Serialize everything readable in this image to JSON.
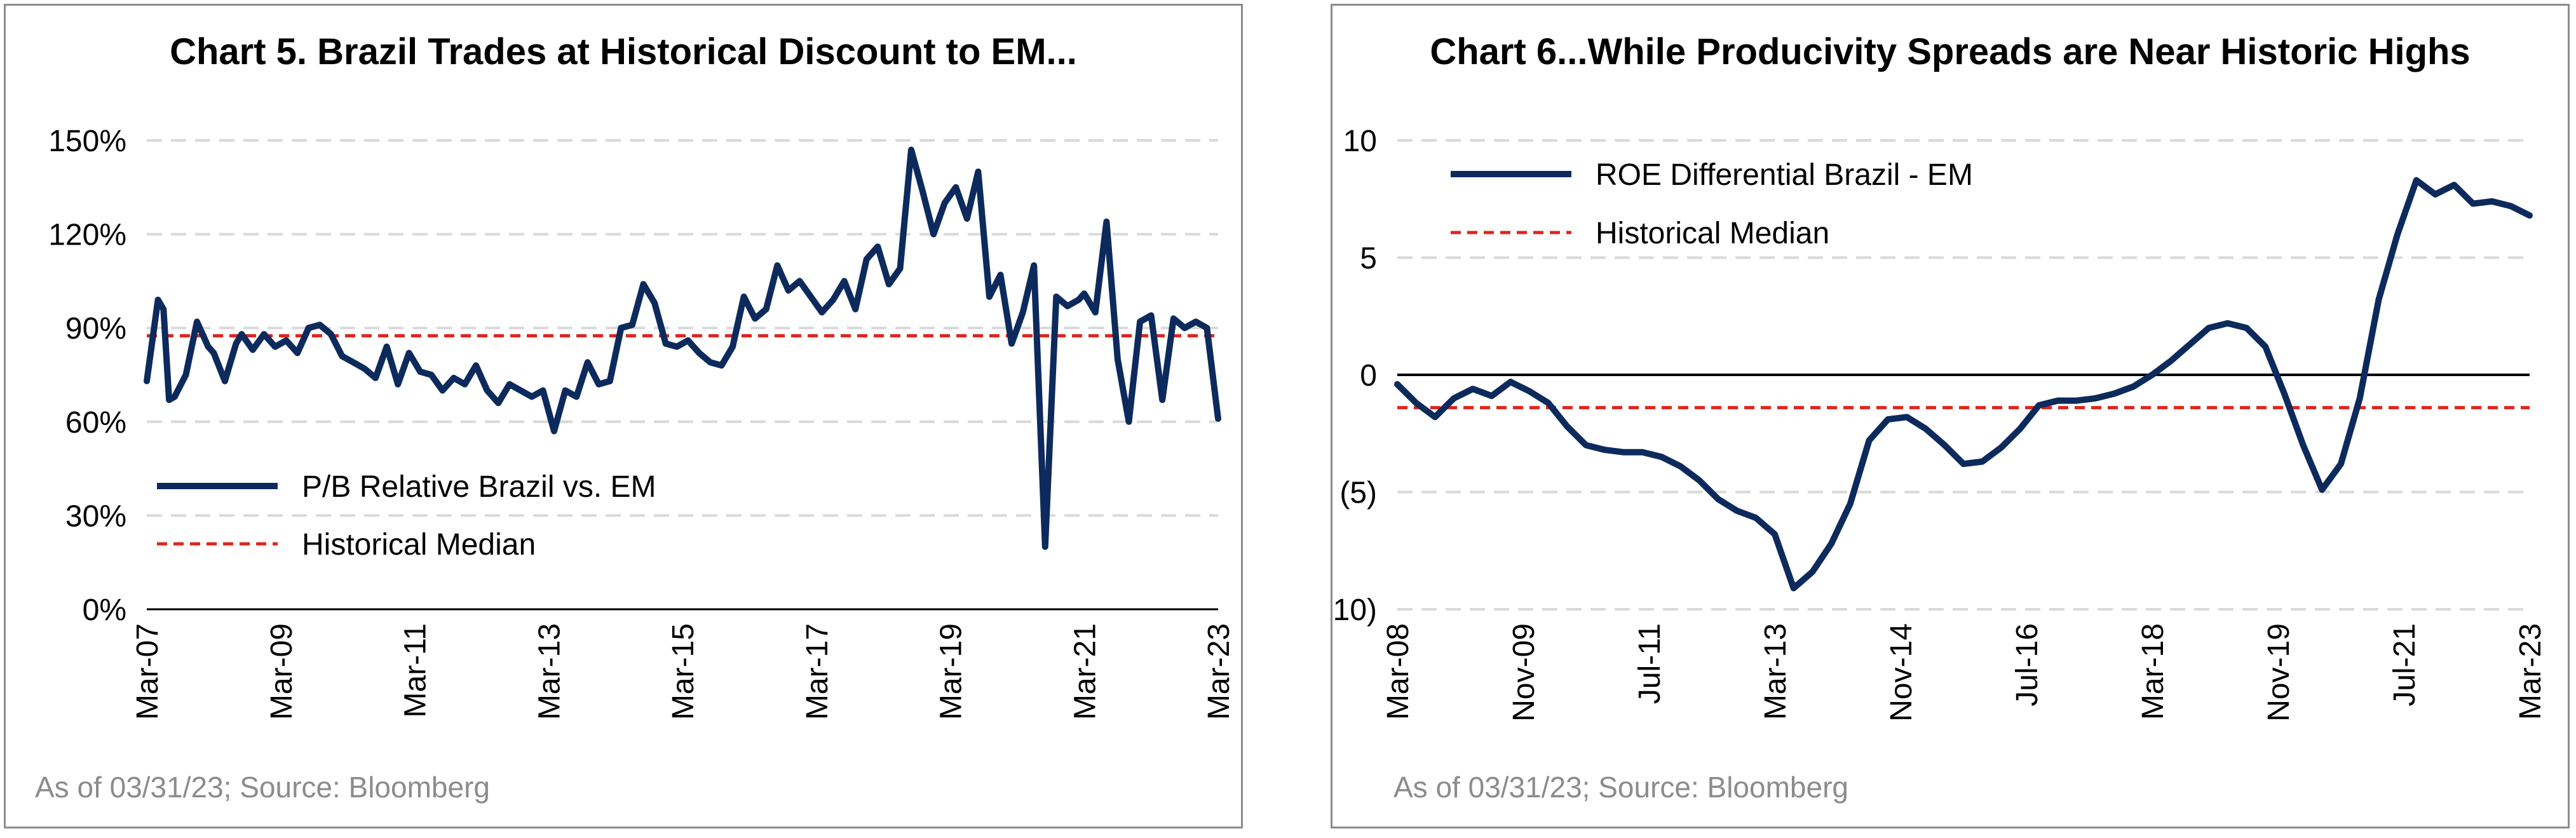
{
  "colors": {
    "series": "#0c2a5c",
    "median": "#e2231a",
    "grid": "#d9d9d9",
    "zero": "#000000",
    "source": "#8c8c8c"
  },
  "chart_data": [
    {
      "type": "line",
      "title": "Chart 5. Brazil Trades at Historical Discount to EM...",
      "source": "As of 03/31/23; Source: Bloomberg",
      "xlabel": "",
      "ylabel": "",
      "x_ticks": [
        "Mar-07",
        "Mar-09",
        "Mar-11",
        "Mar-13",
        "Mar-15",
        "Mar-17",
        "Mar-19",
        "Mar-21",
        "Mar-23"
      ],
      "y_ticks": [
        "0%",
        "30%",
        "60%",
        "90%",
        "120%",
        "150%"
      ],
      "ylim": [
        0,
        150
      ],
      "xlim": [
        "2007-03",
        "2023-03"
      ],
      "grid": true,
      "legend": "left-center",
      "series": [
        {
          "name": "P/B Relative Brazil vs. EM",
          "x": [
            "2007-03",
            "2007-05",
            "2007-06",
            "2007-07",
            "2007-08",
            "2007-10",
            "2007-12",
            "2008-02",
            "2008-03",
            "2008-05",
            "2008-07",
            "2008-08",
            "2008-10",
            "2008-12",
            "2009-02",
            "2009-04",
            "2009-06",
            "2009-08",
            "2009-10",
            "2009-12",
            "2010-02",
            "2010-04",
            "2010-06",
            "2010-08",
            "2010-10",
            "2010-12",
            "2011-02",
            "2011-04",
            "2011-06",
            "2011-08",
            "2011-10",
            "2011-12",
            "2012-02",
            "2012-04",
            "2012-06",
            "2012-08",
            "2012-10",
            "2012-12",
            "2013-02",
            "2013-04",
            "2013-06",
            "2013-08",
            "2013-10",
            "2013-12",
            "2014-02",
            "2014-04",
            "2014-06",
            "2014-08",
            "2014-10",
            "2014-12",
            "2015-02",
            "2015-04",
            "2015-06",
            "2015-08",
            "2015-10",
            "2015-12",
            "2016-02",
            "2016-04",
            "2016-06",
            "2016-08",
            "2016-10",
            "2016-12",
            "2017-02",
            "2017-04",
            "2017-06",
            "2017-08",
            "2017-10",
            "2017-12",
            "2018-02",
            "2018-04",
            "2018-06",
            "2018-08",
            "2018-10",
            "2018-12",
            "2019-02",
            "2019-04",
            "2019-06",
            "2019-08",
            "2019-10",
            "2019-12",
            "2020-02",
            "2020-04",
            "2020-06",
            "2020-08",
            "2020-10",
            "2020-12",
            "2021-02",
            "2021-03",
            "2021-05",
            "2021-07",
            "2021-09",
            "2021-11",
            "2022-01",
            "2022-03",
            "2022-05",
            "2022-07",
            "2022-09",
            "2022-11",
            "2023-01",
            "2023-03"
          ],
          "values": [
            73,
            99,
            96,
            67,
            68,
            75,
            92,
            84,
            82,
            73,
            85,
            88,
            83,
            88,
            84,
            86,
            82,
            90,
            91,
            88,
            81,
            79,
            77,
            74,
            84,
            72,
            82,
            76,
            75,
            70,
            74,
            72,
            78,
            70,
            66,
            72,
            70,
            68,
            70,
            57,
            70,
            68,
            79,
            72,
            73,
            90,
            91,
            104,
            98,
            85,
            84,
            86,
            82,
            79,
            78,
            84,
            100,
            93,
            96,
            110,
            102,
            105,
            100,
            95,
            99,
            105,
            96,
            112,
            116,
            104,
            109,
            147,
            134,
            120,
            130,
            135,
            125,
            140,
            100,
            107,
            85,
            95,
            110,
            20,
            100,
            97,
            99,
            101,
            95,
            124,
            80,
            60,
            92,
            94,
            67,
            93,
            90,
            92,
            90,
            61
          ]
        },
        {
          "name": "Historical Median",
          "values": [
            87.5
          ]
        }
      ]
    },
    {
      "type": "line",
      "title": "Chart 6...While Producivity Spreads are Near Historic Highs",
      "source": "As of 03/31/23; Source: Bloomberg",
      "xlabel": "",
      "ylabel": "",
      "x_ticks": [
        "Mar-08",
        "Nov-09",
        "Jul-11",
        "Mar-13",
        "Nov-14",
        "Jul-16",
        "Mar-18",
        "Nov-19",
        "Jul-21",
        "Mar-23"
      ],
      "y_ticks": [
        "(10)",
        "(5)",
        "0",
        "5",
        "10"
      ],
      "ylim": [
        -10,
        10
      ],
      "xlim": [
        "2008-03",
        "2023-03"
      ],
      "grid": true,
      "legend": "top-left",
      "series": [
        {
          "name": "ROE Differential Brazil - EM",
          "x": [
            "2008-03",
            "2008-06",
            "2008-09",
            "2008-12",
            "2009-03",
            "2009-06",
            "2009-09",
            "2009-12",
            "2010-03",
            "2010-06",
            "2010-09",
            "2010-12",
            "2011-03",
            "2011-06",
            "2011-09",
            "2011-12",
            "2012-03",
            "2012-06",
            "2012-09",
            "2012-12",
            "2013-03",
            "2013-06",
            "2013-09",
            "2013-12",
            "2014-03",
            "2014-06",
            "2014-09",
            "2014-12",
            "2015-03",
            "2015-06",
            "2015-09",
            "2015-12",
            "2016-03",
            "2016-06",
            "2016-09",
            "2016-12",
            "2017-03",
            "2017-06",
            "2017-09",
            "2017-12",
            "2018-03",
            "2018-06",
            "2018-09",
            "2018-12",
            "2019-03",
            "2019-06",
            "2019-09",
            "2019-12",
            "2020-03",
            "2020-06",
            "2020-09",
            "2020-12",
            "2021-03",
            "2021-06",
            "2021-09",
            "2021-12",
            "2022-03",
            "2022-06",
            "2022-09",
            "2022-12",
            "2023-03"
          ],
          "values": [
            -0.4,
            -1.2,
            -1.8,
            -1.0,
            -0.6,
            -0.9,
            -0.3,
            -0.7,
            -1.2,
            -2.2,
            -3.0,
            -3.2,
            -3.3,
            -3.3,
            -3.5,
            -3.9,
            -4.5,
            -5.3,
            -5.8,
            -6.1,
            -6.8,
            -9.1,
            -8.4,
            -7.2,
            -5.5,
            -2.8,
            -1.9,
            -1.8,
            -2.3,
            -3.0,
            -3.8,
            -3.7,
            -3.1,
            -2.3,
            -1.3,
            -1.1,
            -1.1,
            -1.0,
            -0.8,
            -0.5,
            0.0,
            0.6,
            1.3,
            2.0,
            2.2,
            2.0,
            1.2,
            -0.8,
            -3.0,
            -4.9,
            -3.8,
            -1.0,
            3.2,
            6.0,
            8.3,
            7.7,
            8.1,
            7.3,
            7.4,
            7.2,
            6.8
          ]
        },
        {
          "name": "Historical Median",
          "values": [
            -1.4
          ]
        }
      ]
    }
  ]
}
